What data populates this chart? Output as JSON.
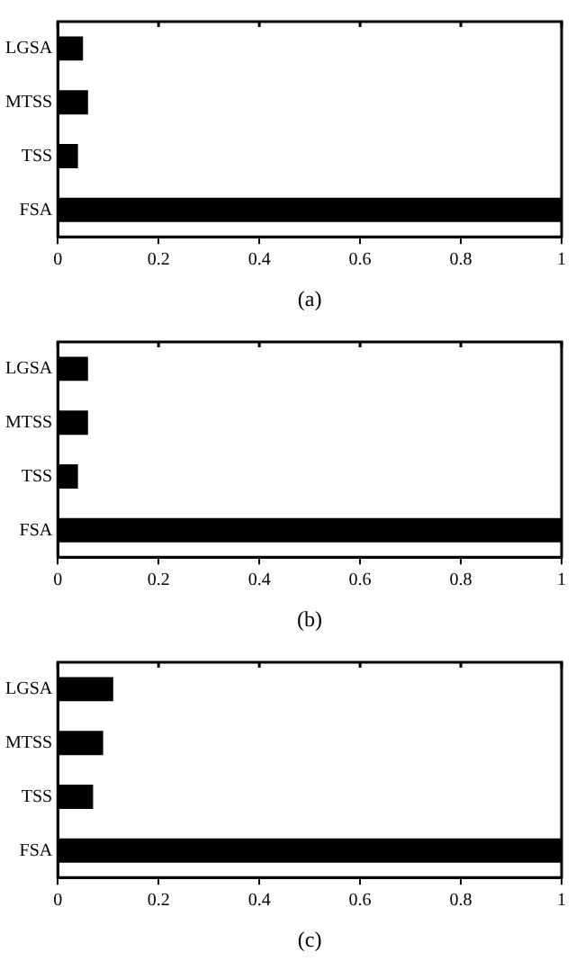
{
  "chart_data": [
    {
      "type": "bar",
      "orientation": "horizontal",
      "categories": [
        "LGSA",
        "MTSS",
        "TSS",
        "FSA"
      ],
      "values": [
        0.05,
        0.06,
        0.04,
        1
      ],
      "color": "#000000",
      "xlim": [
        0,
        1
      ],
      "xticks": [
        0,
        0.2,
        0.4,
        0.6,
        0.8,
        1
      ],
      "xlabel": "(a)",
      "grid": false,
      "legend": false
    },
    {
      "type": "bar",
      "orientation": "horizontal",
      "categories": [
        "LGSA",
        "MTSS",
        "TSS",
        "FSA"
      ],
      "values": [
        0.06,
        0.06,
        0.04,
        1
      ],
      "color": "#000000",
      "xlim": [
        0,
        1
      ],
      "xticks": [
        0,
        0.2,
        0.4,
        0.6,
        0.8,
        1
      ],
      "xlabel": "(b)",
      "grid": false,
      "legend": false
    },
    {
      "type": "bar",
      "orientation": "horizontal",
      "categories": [
        "LGSA",
        "MTSS",
        "TSS",
        "FSA"
      ],
      "values": [
        0.11,
        0.09,
        0.07,
        1
      ],
      "color": "#000000",
      "xlim": [
        0,
        1
      ],
      "xticks": [
        0,
        0.2,
        0.4,
        0.6,
        0.8,
        1
      ],
      "xlabel": "(c)",
      "grid": false,
      "legend": false
    }
  ]
}
